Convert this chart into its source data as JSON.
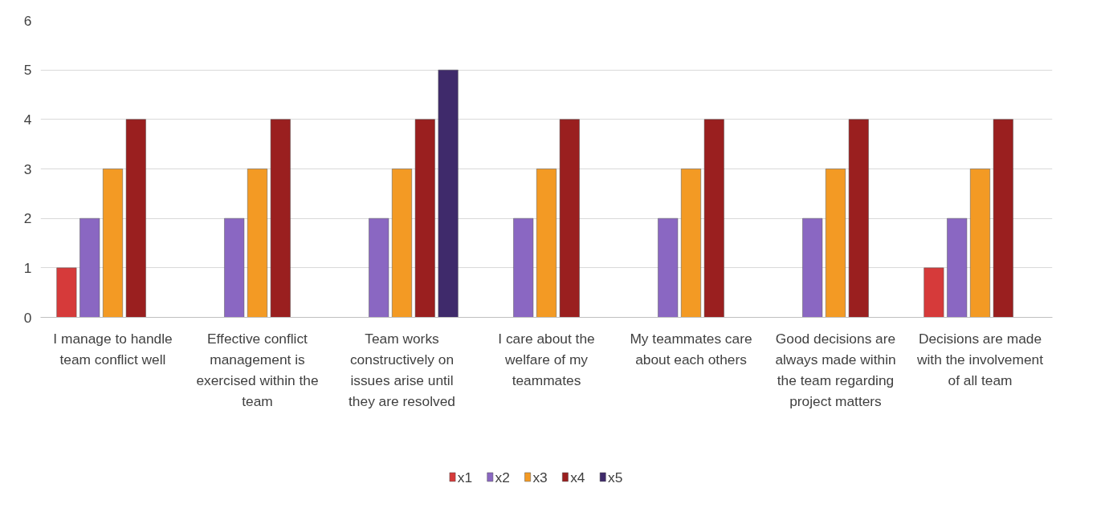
{
  "chart_data": {
    "type": "bar",
    "categories": [
      "I manage to handle team conflict well",
      "Effective conflict management is exercised within the team",
      "Team works constructively on issues arise until they are resolved",
      "I care about the welfare of my teammates",
      "My teammates care about each others",
      "Good decisions are always made within the team regarding project matters",
      "Decisions are made with the involvement of all team"
    ],
    "series": [
      {
        "name": "x1",
        "color": "#d63a3a",
        "values": [
          1,
          null,
          null,
          null,
          null,
          null,
          1
        ]
      },
      {
        "name": "x2",
        "color": "#8a67c2",
        "values": [
          2,
          2,
          2,
          2,
          2,
          2,
          2
        ]
      },
      {
        "name": "x3",
        "color": "#f39a24",
        "values": [
          3,
          3,
          3,
          3,
          3,
          3,
          3
        ]
      },
      {
        "name": "x4",
        "color": "#9a1f1f",
        "values": [
          4,
          4,
          4,
          4,
          4,
          4,
          4
        ]
      },
      {
        "name": "x5",
        "color": "#3f2a6b",
        "values": [
          null,
          null,
          5,
          null,
          null,
          null,
          null
        ]
      }
    ],
    "ylim": [
      0,
      6
    ],
    "yticks": [
      0,
      1,
      2,
      3,
      4,
      5,
      6
    ],
    "grid": "y",
    "legend": "bottom"
  }
}
